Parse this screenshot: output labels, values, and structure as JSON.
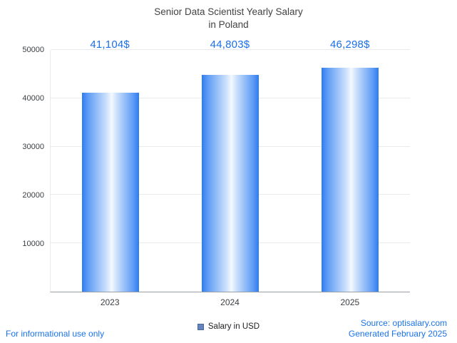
{
  "title": {
    "line1": "Senior Data Scientist Yearly Salary",
    "line2": "in Poland"
  },
  "chart_data": {
    "type": "bar",
    "title": "Senior Data Scientist Yearly Salary in Poland",
    "categories": [
      "2023",
      "2024",
      "2025"
    ],
    "values": [
      41104,
      44803,
      46298
    ],
    "value_labels": [
      "41,104$",
      "44,803$",
      "46,298$"
    ],
    "ylim": [
      0,
      50000
    ],
    "yticks": [
      10000,
      20000,
      30000,
      40000,
      50000
    ],
    "grid": true,
    "legend_entries": [
      "Salary in USD"
    ],
    "legend_position": "bottom"
  },
  "legend": {
    "label": "Salary in USD"
  },
  "footer": {
    "left": "For informational use only",
    "source": "Source: optisalary.com",
    "generated": "Generated February 2025"
  },
  "colors": {
    "bar_edge": "#2d7bf0",
    "bar_center": "#f4f9ff",
    "value_label": "#1a6fe8",
    "footer_text": "#1a73e8",
    "grid": "#e8eaed",
    "axis": "#9aa0a6",
    "title_text": "#424242",
    "legend_swatch": "#6584bd"
  }
}
